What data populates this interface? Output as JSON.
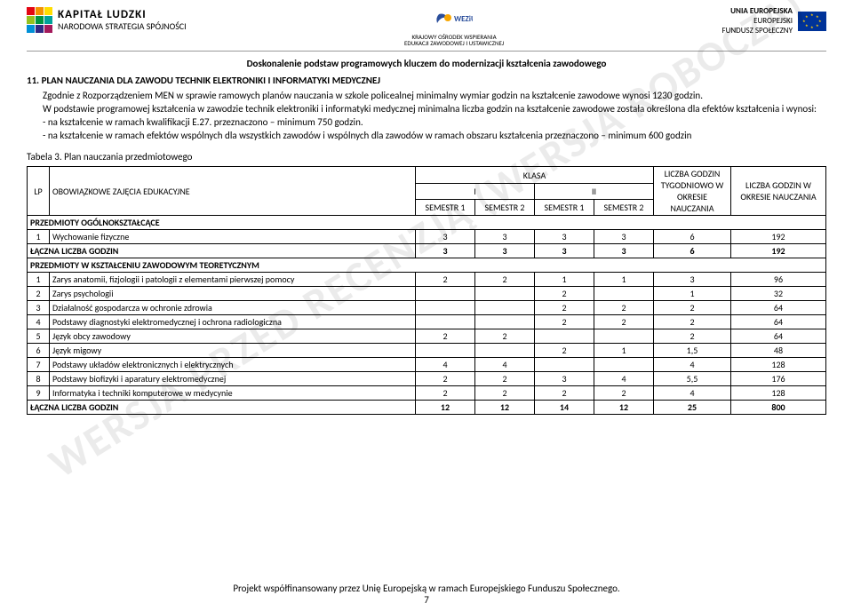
{
  "header": {
    "left_title": "KAPITAŁ LUDZKI",
    "left_sub": "NARODOWA STRATEGIA SPÓJNOŚCI",
    "center_top": "K★WEZiU",
    "center_sub": "KRAJOWY OŚRODEK WSPIERANIA\nEDUKACJI ZAWODOWEJ I USTAWICZNEJ",
    "right_line1": "UNIA EUROPEJSKA",
    "right_line2": "EUROPEJSKI",
    "right_line3": "FUNDUSZ SPOŁECZNY"
  },
  "subtitle": "Doskonalenie podstaw programowych kluczem do modernizacji kształcenia zawodowego",
  "watermark": "WERSJA PRZED RECENZJĄ (WERSJA ROBOCZA)",
  "section": {
    "num": "11.",
    "title": "PLAN NAUCZANIA DLA ZAWODU TECHNIK ELEKTRONIKI I INFORMATYKI MEDYCZNEJ",
    "p1": "Zgodnie z Rozporządzeniem MEN w sprawie ramowych planów nauczania w szkole policealnej minimalny wymiar godzin na kształcenie zawodowe wynosi 1230 godzin.",
    "p2": "W podstawie programowej kształcenia w zawodzie technik elektroniki i informatyki medycznej minimalna liczba godzin na kształcenie zawodowe została określona dla efektów kształcenia i wynosi:",
    "p3": "- na kształcenie w ramach kwalifikacji E.27. przeznaczono – minimum 750 godzin.",
    "p4": "- na kształcenie w ramach efektów wspólnych dla wszystkich zawodów i wspólnych dla zawodów w ramach obszaru kształcenia przeznaczono – minimum 600 godzin"
  },
  "tabela_caption": "Tabela 3. Plan nauczania przedmiotowego",
  "table": {
    "head": {
      "lp": "LP",
      "obw": "OBOWIĄZKOWE ZAJĘCIA EDUKACYJNE",
      "klasa": "KLASA",
      "lg_tyg": "LICZBA GODZIN TYGODNIOWO W OKRESIE NAUCZANIA",
      "lg_okr": "LICZBA GODZIN W OKRESIE NAUCZANIA",
      "k1": "I",
      "k2": "II",
      "s1": "SEMESTR 1",
      "s2": "SEMESTR 2"
    },
    "group1": "PRZEDMIOTY OGÓLNOKSZTAŁCĄCE",
    "rows1": [
      {
        "lp": "1",
        "name": "Wychowanie fizyczne",
        "c": [
          "3",
          "3",
          "3",
          "3",
          "6",
          "192"
        ]
      }
    ],
    "sum1_label": "ŁĄCZNA LICZBA GODZIN",
    "sum1": [
      "3",
      "3",
      "3",
      "3",
      "6",
      "192"
    ],
    "group2": "PRZEDMIOTY W KSZTAŁCENIU ZAWODOWYM TEORETYCZNYM",
    "rows2": [
      {
        "lp": "1",
        "name": "Zarys anatomii, fizjologii i patologii z elementami pierwszej pomocy",
        "c": [
          "2",
          "2",
          "1",
          "1",
          "3",
          "96"
        ]
      },
      {
        "lp": "2",
        "name": "Zarys psychologii",
        "c": [
          "",
          "",
          "2",
          "",
          "1",
          "32"
        ]
      },
      {
        "lp": "3",
        "name": "Działalność gospodarcza w ochronie zdrowia",
        "c": [
          "",
          "",
          "2",
          "2",
          "2",
          "64"
        ]
      },
      {
        "lp": "4",
        "name": "Podstawy diagnostyki elektromedycznej i ochrona radiologiczna",
        "c": [
          "",
          "",
          "2",
          "2",
          "2",
          "64"
        ]
      },
      {
        "lp": "5",
        "name": "Język obcy zawodowy",
        "c": [
          "2",
          "2",
          "",
          "",
          "2",
          "64"
        ]
      },
      {
        "lp": "6",
        "name": "Język migowy",
        "c": [
          "",
          "",
          "2",
          "1",
          "1,5",
          "48"
        ]
      },
      {
        "lp": "7",
        "name": "Podstawy układów elektronicznych i elektrycznych",
        "c": [
          "4",
          "4",
          "",
          "",
          "4",
          "128"
        ]
      },
      {
        "lp": "8",
        "name": "Podstawy biofizyki i aparatury elektromedycznej",
        "c": [
          "2",
          "2",
          "3",
          "4",
          "5,5",
          "176"
        ]
      },
      {
        "lp": "9",
        "name": "Informatyka i techniki komputerowe w medycynie",
        "c": [
          "2",
          "2",
          "2",
          "2",
          "4",
          "128"
        ]
      }
    ],
    "sum2_label": "ŁĄCZNA LICZBA GODZIN",
    "sum2": [
      "12",
      "12",
      "14",
      "12",
      "25",
      "800"
    ]
  },
  "footer": {
    "text": "Projekt współfinansowany przez Unię Europejską w ramach Europejskiego Funduszu Społecznego.",
    "page": "7"
  },
  "colors": {
    "kl": [
      "#e30613",
      "#f39200",
      "#ffde00",
      "#95c11f",
      "#009640",
      "#00a19a",
      "#0090d7",
      "#312783",
      "#a3195b"
    ],
    "eu_blue": "#003399",
    "eu_yellow": "#ffcc00",
    "kow_blue": "#2a4e9b",
    "kow_yellow": "#f7a600"
  }
}
